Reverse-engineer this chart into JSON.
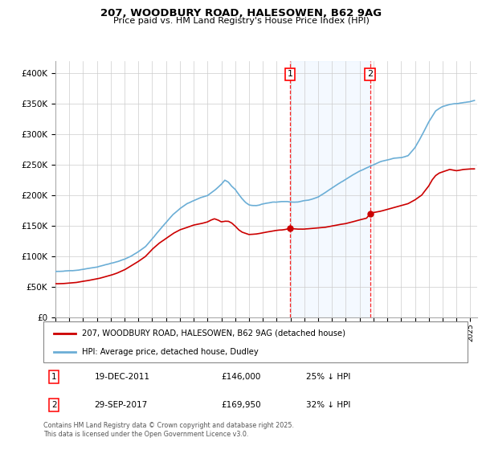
{
  "title_line1": "207, WOODBURY ROAD, HALESOWEN, B62 9AG",
  "title_line2": "Price paid vs. HM Land Registry's House Price Index (HPI)",
  "xlim_start": 1995.0,
  "xlim_end": 2025.5,
  "ylim_min": 0,
  "ylim_max": 420000,
  "yticks": [
    0,
    50000,
    100000,
    150000,
    200000,
    250000,
    300000,
    350000,
    400000
  ],
  "ytick_labels": [
    "£0",
    "£50K",
    "£100K",
    "£150K",
    "£200K",
    "£250K",
    "£300K",
    "£350K",
    "£400K"
  ],
  "purchase1_date": 2011.96,
  "purchase1_price": 146000,
  "purchase2_date": 2017.75,
  "purchase2_price": 169950,
  "purchase1_text": "19-DEC-2011",
  "purchase1_price_text": "£146,000",
  "purchase1_hpi_text": "25% ↓ HPI",
  "purchase2_text": "29-SEP-2017",
  "purchase2_price_text": "£169,950",
  "purchase2_hpi_text": "32% ↓ HPI",
  "hpi_color": "#6baed6",
  "price_color": "#cc0000",
  "shaded_color": "#ddeeff",
  "legend_line1": "207, WOODBURY ROAD, HALESOWEN, B62 9AG (detached house)",
  "legend_line2": "HPI: Average price, detached house, Dudley",
  "footnote": "Contains HM Land Registry data © Crown copyright and database right 2025.\nThis data is licensed under the Open Government Licence v3.0.",
  "xtick_years": [
    1995,
    1996,
    1997,
    1998,
    1999,
    2000,
    2001,
    2002,
    2003,
    2004,
    2005,
    2006,
    2007,
    2008,
    2009,
    2010,
    2011,
    2012,
    2013,
    2014,
    2015,
    2016,
    2017,
    2018,
    2019,
    2020,
    2021,
    2022,
    2023,
    2024,
    2025
  ],
  "hpi_anchors_x": [
    1995.0,
    1995.5,
    1996.0,
    1996.5,
    1997.0,
    1997.5,
    1998.0,
    1998.5,
    1999.0,
    1999.5,
    2000.0,
    2000.5,
    2001.0,
    2001.5,
    2002.0,
    2002.5,
    2003.0,
    2003.5,
    2004.0,
    2004.5,
    2005.0,
    2005.5,
    2006.0,
    2006.5,
    2007.0,
    2007.25,
    2007.5,
    2007.75,
    2008.0,
    2008.25,
    2008.5,
    2008.75,
    2009.0,
    2009.25,
    2009.5,
    2009.75,
    2010.0,
    2010.25,
    2010.5,
    2010.75,
    2011.0,
    2011.25,
    2011.5,
    2011.75,
    2012.0,
    2012.25,
    2012.5,
    2012.75,
    2013.0,
    2013.25,
    2013.5,
    2013.75,
    2014.0,
    2014.5,
    2015.0,
    2015.5,
    2016.0,
    2016.5,
    2017.0,
    2017.5,
    2018.0,
    2018.5,
    2019.0,
    2019.5,
    2020.0,
    2020.5,
    2021.0,
    2021.5,
    2022.0,
    2022.5,
    2023.0,
    2023.5,
    2024.0,
    2024.5,
    2025.0,
    2025.3
  ],
  "hpi_anchors_y": [
    75000,
    75500,
    76000,
    77000,
    78500,
    80000,
    82000,
    85000,
    88000,
    91000,
    95000,
    100000,
    107000,
    115000,
    128000,
    142000,
    155000,
    168000,
    178000,
    186000,
    191000,
    196000,
    200000,
    208000,
    218000,
    225000,
    222000,
    215000,
    210000,
    202000,
    195000,
    189000,
    185000,
    184000,
    184000,
    185000,
    187000,
    188000,
    189000,
    190000,
    190000,
    191000,
    191000,
    191000,
    190000,
    190000,
    190000,
    191000,
    192000,
    193000,
    194000,
    196000,
    198000,
    205000,
    213000,
    220000,
    227000,
    234000,
    240000,
    245000,
    250000,
    255000,
    258000,
    261000,
    262000,
    265000,
    278000,
    298000,
    320000,
    338000,
    345000,
    348000,
    350000,
    352000,
    354000,
    356000
  ],
  "price_anchors_x": [
    1995.0,
    1995.5,
    1996.0,
    1996.5,
    1997.0,
    1997.5,
    1998.0,
    1998.5,
    1999.0,
    1999.5,
    2000.0,
    2000.5,
    2001.0,
    2001.5,
    2002.0,
    2002.5,
    2003.0,
    2003.5,
    2004.0,
    2004.5,
    2005.0,
    2005.5,
    2006.0,
    2006.25,
    2006.5,
    2006.75,
    2007.0,
    2007.25,
    2007.5,
    2007.75,
    2008.0,
    2008.25,
    2008.5,
    2008.75,
    2009.0,
    2009.5,
    2010.0,
    2010.5,
    2011.0,
    2011.5,
    2011.96,
    2012.0,
    2012.5,
    2013.0,
    2013.5,
    2014.0,
    2014.5,
    2015.0,
    2015.5,
    2016.0,
    2016.5,
    2017.0,
    2017.5,
    2017.75,
    2018.0,
    2018.5,
    2019.0,
    2019.5,
    2020.0,
    2020.5,
    2021.0,
    2021.5,
    2022.0,
    2022.25,
    2022.5,
    2022.75,
    2023.0,
    2023.25,
    2023.5,
    2023.75,
    2024.0,
    2024.5,
    2025.0,
    2025.3
  ],
  "price_anchors_y": [
    55000,
    55000,
    56000,
    57000,
    59000,
    61000,
    63000,
    66000,
    69000,
    73000,
    78000,
    85000,
    92000,
    100000,
    112000,
    122000,
    130000,
    138000,
    144000,
    148000,
    152000,
    154000,
    157000,
    160000,
    162000,
    160000,
    157000,
    158000,
    158000,
    155000,
    150000,
    144000,
    140000,
    138000,
    136000,
    137000,
    139000,
    141000,
    143000,
    144000,
    146000,
    146000,
    145000,
    145000,
    146000,
    147000,
    148000,
    150000,
    152000,
    154000,
    157000,
    160000,
    163000,
    169950,
    172000,
    174000,
    177000,
    180000,
    183000,
    186000,
    192000,
    200000,
    215000,
    225000,
    232000,
    236000,
    238000,
    240000,
    242000,
    241000,
    240000,
    242000,
    243000,
    243000
  ]
}
